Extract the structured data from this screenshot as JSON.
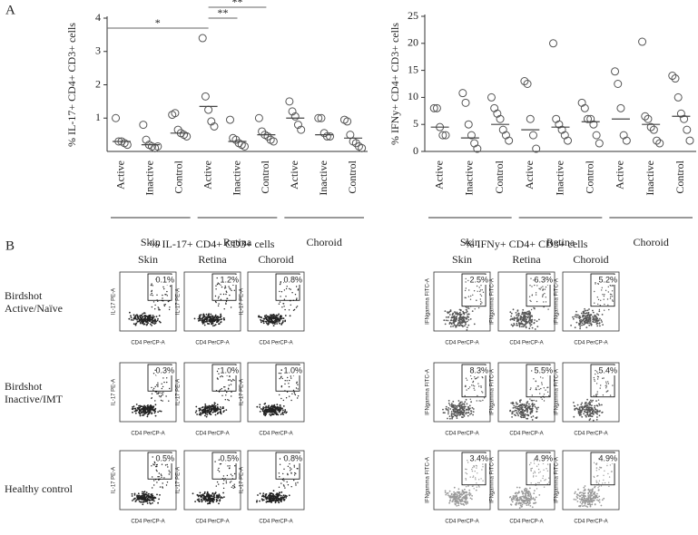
{
  "panel_labels": [
    "A",
    "B"
  ],
  "chart_data": [
    {
      "type": "dot",
      "ylabel": "% IL-17+ CD4+ CD3+ cells",
      "categories": [
        "Active",
        "Inactive",
        "Control",
        "Active",
        "Inactive",
        "Control",
        "Active",
        "Inactive",
        "Control"
      ],
      "groups": [
        "Skin",
        "Retina",
        "Choroid"
      ],
      "points": [
        [
          1.0,
          0.3,
          0.3,
          0.25,
          0.2
        ],
        [
          0.8,
          0.35,
          0.2,
          0.15,
          0.1,
          0.15
        ],
        [
          1.1,
          1.15,
          0.65,
          0.55,
          0.5,
          0.45
        ],
        [
          3.4,
          1.65,
          1.25,
          0.9,
          0.75
        ],
        [
          0.95,
          0.4,
          0.35,
          0.25,
          0.2,
          0.15
        ],
        [
          1.0,
          0.6,
          0.5,
          0.45,
          0.35,
          0.3
        ],
        [
          1.5,
          1.2,
          1.05,
          0.8,
          0.65
        ],
        [
          1.0,
          1.0,
          0.55,
          0.45,
          0.45
        ],
        [
          0.95,
          0.9,
          0.5,
          0.3,
          0.25,
          0.15,
          0.1
        ]
      ],
      "medians": [
        0.3,
        0.2,
        0.55,
        1.35,
        0.3,
        0.5,
        1.0,
        0.5,
        0.4
      ],
      "annotations": [
        "*",
        "**",
        "**"
      ],
      "ylim": [
        0,
        4
      ],
      "yticks": [
        1,
        2,
        3,
        4
      ]
    },
    {
      "type": "dot",
      "ylabel": "% IFNy+ CD4+ CD3+ cells",
      "categories": [
        "Active",
        "Inactive",
        "Control",
        "Active",
        "Inactive",
        "Control",
        "Active",
        "Inactive",
        "Control"
      ],
      "groups": [
        "Skin",
        "Retina",
        "Choroid"
      ],
      "points": [
        [
          8,
          8,
          4.5,
          3,
          3
        ],
        [
          10.8,
          9,
          5,
          3,
          1.5,
          0.5
        ],
        [
          10,
          8,
          7,
          6,
          4,
          3,
          2
        ],
        [
          13,
          12.5,
          6,
          3,
          0.5
        ],
        [
          20,
          6,
          5,
          4,
          3,
          2
        ],
        [
          9,
          8,
          6,
          6,
          5,
          3,
          1.5
        ],
        [
          14.8,
          12.5,
          8,
          3,
          2
        ],
        [
          20.3,
          6.5,
          6,
          4.5,
          4,
          2,
          1.5
        ],
        [
          14,
          13.5,
          10,
          7,
          6,
          4,
          2
        ]
      ],
      "medians": [
        4.5,
        2.5,
        5,
        4,
        4.5,
        5.5,
        6,
        5,
        6.5
      ],
      "annotations": [],
      "ylim": [
        0,
        25
      ],
      "yticks": [
        0,
        5,
        10,
        15,
        20,
        25
      ]
    }
  ],
  "flow": {
    "headers": [
      "% IL-17+ CD4+ CD3+ cells",
      "% IFNy+ CD4+ CD3+ cells"
    ],
    "columns": [
      "Skin",
      "Retina",
      "Choroid"
    ],
    "rows": [
      "Birdshot Active/Naïve",
      "Birdshot Inactive/IMT",
      "Healthy control"
    ],
    "x_axis": "CD4 PerCP-A",
    "y_axes": [
      "IL-17 PE-A",
      "IFNgamma FITC-A"
    ],
    "percentages": [
      [
        [
          "0.1%",
          "1.2%",
          "0.8%"
        ],
        [
          "0.3%",
          "1.0%",
          "1.0%"
        ],
        [
          "0.5%",
          "0.5%",
          "0.8%"
        ]
      ],
      [
        [
          "2.5%",
          "6.3%",
          "5.2%"
        ],
        [
          "8.3%",
          "5.5%",
          "5.4%"
        ],
        [
          "3.4%",
          "4.9%",
          "4.9%"
        ]
      ]
    ]
  }
}
